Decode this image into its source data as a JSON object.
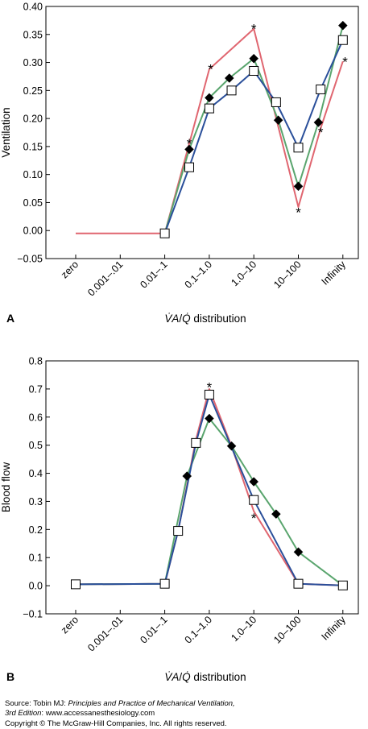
{
  "chart_data": [
    {
      "type": "line",
      "panel_label": "A",
      "ylabel": "Ventilation",
      "xlabel_parts": {
        "va": "V̇A",
        "slash": "/",
        "q": "Q̇",
        "rest": " distribution"
      },
      "categories": [
        "zero",
        "0.001–.01",
        "0.01–.1",
        "0.1–1.0",
        "1.0–10",
        "10–100",
        "Infinity"
      ],
      "ylim": [
        -0.05,
        0.4
      ],
      "yticks": [
        "−0.05",
        "0.00",
        "0.05",
        "0.10",
        "0.15",
        "0.20",
        "0.25",
        "0.30",
        "0.35",
        "0.40"
      ],
      "ytick_values": [
        -0.05,
        0,
        0.05,
        0.1,
        0.15,
        0.2,
        0.25,
        0.3,
        0.35,
        0.4
      ],
      "grid": false,
      "series": [
        {
          "marker": "diamond",
          "color": "#5aa56e",
          "x": [
            2,
            2.55,
            3,
            3.45,
            4,
            4.55,
            5,
            5.45,
            6
          ],
          "y": [
            -0.005,
            0.145,
            0.237,
            0.272,
            0.307,
            0.197,
            0.079,
            0.193,
            0.366
          ]
        },
        {
          "marker": "square",
          "color": "#2a4f9a",
          "x": [
            2,
            2.55,
            3,
            3.5,
            4,
            4.5,
            5,
            5.5,
            6
          ],
          "y": [
            -0.005,
            0.113,
            0.218,
            0.25,
            0.285,
            0.229,
            0.148,
            0.252,
            0.34
          ]
        },
        {
          "marker": "none",
          "color": "#e06670",
          "x": [
            0,
            2,
            2.55,
            3,
            4,
            5,
            5.5,
            6
          ],
          "y": [
            -0.005,
            -0.005,
            0.155,
            0.288,
            0.36,
            0.042,
            0.182,
            0.302
          ]
        }
      ],
      "annotations": [
        {
          "text": "*",
          "x": 2.55,
          "y": 0.16
        },
        {
          "text": "*",
          "x": 3.03,
          "y": 0.293
        },
        {
          "text": "*",
          "x": 4.0,
          "y": 0.365
        },
        {
          "text": "*",
          "x": 5.0,
          "y": 0.037
        },
        {
          "text": "*",
          "x": 5.5,
          "y": 0.18
        },
        {
          "text": "*",
          "x": 6.05,
          "y": 0.306
        }
      ]
    },
    {
      "type": "line",
      "panel_label": "B",
      "ylabel": "Blood flow",
      "xlabel_parts": {
        "va": "V̇A",
        "slash": "/",
        "q": "Q̇",
        "rest": " distribution"
      },
      "categories": [
        "zero",
        "0.001–.01",
        "0.01–.1",
        "0.1–1.0",
        "1.0–10",
        "10–100",
        "Infinity"
      ],
      "ylim": [
        -0.1,
        0.8
      ],
      "yticks": [
        "−0.1",
        "0.0",
        "0.1",
        "0.2",
        "0.3",
        "0.4",
        "0.5",
        "0.6",
        "0.7",
        "0.8"
      ],
      "ytick_values": [
        -0.1,
        0,
        0.1,
        0.2,
        0.3,
        0.4,
        0.5,
        0.6,
        0.7,
        0.8
      ],
      "grid": false,
      "series": [
        {
          "marker": "diamond",
          "color": "#5aa56e",
          "x": [
            0,
            2,
            2.5,
            3,
            3.5,
            4,
            4.5,
            5,
            6
          ],
          "y": [
            0.005,
            0.007,
            0.39,
            0.595,
            0.497,
            0.37,
            0.255,
            0.12,
            0.001
          ]
        },
        {
          "marker": "square",
          "color": "#2a4f9a",
          "x": [
            0,
            2,
            2.3,
            2.7,
            3,
            4,
            5,
            6
          ],
          "y": [
            0.005,
            0.007,
            0.195,
            0.508,
            0.68,
            0.305,
            0.007,
            0.001
          ]
        },
        {
          "marker": "none",
          "color": "#e06670",
          "x": [
            0,
            2,
            2.3,
            2.7,
            3,
            3.5,
            4,
            5,
            6
          ],
          "y": [
            0.005,
            0.007,
            0.195,
            0.52,
            0.7,
            0.497,
            0.265,
            0.007,
            0.001
          ]
        }
      ],
      "annotations": [
        {
          "text": "*",
          "x": 3.0,
          "y": 0.715
        },
        {
          "text": "*",
          "x": 4.0,
          "y": 0.25
        }
      ]
    }
  ],
  "footer": {
    "source_prefix": "Source: Tobin MJ: ",
    "source_title": "Principles and Practice of Mechanical Ventilation,",
    "source_edition": "3rd Edition",
    "source_suffix": ": www.accessanesthesiology.com",
    "copyright": "Copyright © The McGraw-Hill Companies, Inc. All rights reserved."
  }
}
